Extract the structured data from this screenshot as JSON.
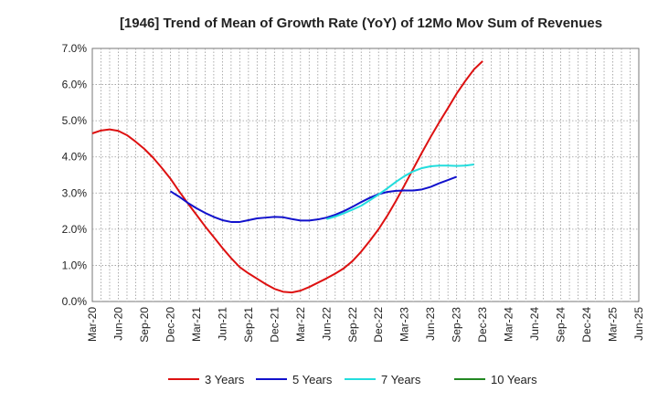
{
  "chart_data": {
    "type": "line",
    "title": "[1946]  Trend of Mean of Growth Rate (YoY) of 12Mo Mov Sum of Revenues",
    "xlabel": "",
    "ylabel": "",
    "ylim": [
      0,
      7
    ],
    "y_ticks": [
      "0.0%",
      "1.0%",
      "2.0%",
      "3.0%",
      "4.0%",
      "5.0%",
      "6.0%",
      "7.0%"
    ],
    "x_ticks": [
      "Mar-20",
      "Jun-20",
      "Sep-20",
      "Dec-20",
      "Mar-21",
      "Jun-21",
      "Sep-21",
      "Dec-21",
      "Mar-22",
      "Jun-22",
      "Sep-22",
      "Dec-22",
      "Mar-23",
      "Jun-23",
      "Sep-23",
      "Dec-23",
      "Mar-24",
      "Jun-24",
      "Sep-24",
      "Dec-24",
      "Mar-25",
      "Jun-25"
    ],
    "grid": true,
    "legend_position": "bottom",
    "series": [
      {
        "name": "3 Years",
        "color": "#dd1111",
        "start_index": 0,
        "values": [
          4.65,
          4.73,
          4.76,
          4.72,
          4.6,
          4.42,
          4.22,
          3.98,
          3.7,
          3.4,
          3.05,
          2.72,
          2.4,
          2.08,
          1.78,
          1.48,
          1.2,
          0.95,
          0.78,
          0.63,
          0.48,
          0.35,
          0.27,
          0.25,
          0.3,
          0.4,
          0.52,
          0.64,
          0.77,
          0.92,
          1.12,
          1.38,
          1.68,
          2.0,
          2.37,
          2.78,
          3.22,
          3.67,
          4.12,
          4.55,
          4.96,
          5.35,
          5.75,
          6.1,
          6.42,
          6.65
        ]
      },
      {
        "name": "5 Years",
        "color": "#1111cc",
        "start_index": 9,
        "values": [
          3.05,
          2.9,
          2.73,
          2.58,
          2.45,
          2.34,
          2.25,
          2.2,
          2.2,
          2.25,
          2.3,
          2.32,
          2.34,
          2.33,
          2.28,
          2.24,
          2.24,
          2.27,
          2.32,
          2.4,
          2.5,
          2.62,
          2.75,
          2.87,
          2.97,
          3.03,
          3.06,
          3.07,
          3.07,
          3.1,
          3.17,
          3.27,
          3.36,
          3.45
        ]
      },
      {
        "name": "7 Years",
        "color": "#22dddd",
        "start_index": 27,
        "values": [
          2.28,
          2.35,
          2.44,
          2.54,
          2.65,
          2.8,
          2.96,
          3.13,
          3.31,
          3.47,
          3.6,
          3.69,
          3.74,
          3.76,
          3.76,
          3.75,
          3.76,
          3.79
        ]
      },
      {
        "name": "10 Years",
        "color": "#228822",
        "start_index": 0,
        "values": []
      }
    ]
  }
}
